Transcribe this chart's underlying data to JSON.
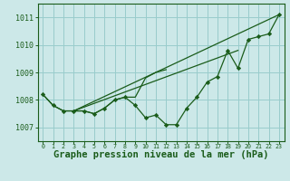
{
  "background_color": "#cce8e8",
  "grid_color": "#99cccc",
  "line_color": "#1a5c1a",
  "marker_color": "#1a5c1a",
  "xlabel": "Graphe pression niveau de la mer (hPa)",
  "xlabel_fontsize": 7.5,
  "ylim": [
    1006.5,
    1011.5
  ],
  "yticks": [
    1007,
    1008,
    1009,
    1010,
    1011
  ],
  "xlim": [
    -0.5,
    23.5
  ],
  "xticks": [
    0,
    1,
    2,
    3,
    4,
    5,
    6,
    7,
    8,
    9,
    10,
    11,
    12,
    13,
    14,
    15,
    16,
    17,
    18,
    19,
    20,
    21,
    22,
    23
  ],
  "series1": [
    1008.2,
    1007.8,
    1007.6,
    1007.6,
    1007.6,
    1007.5,
    1007.7,
    1008.0,
    1008.1,
    1007.8,
    1007.35,
    1007.45,
    1007.1,
    1007.1,
    1007.7,
    1008.1,
    1008.65,
    1008.85,
    1009.8,
    1009.15,
    1010.2,
    1010.3,
    1010.4,
    1011.1
  ],
  "series2": [
    1008.2,
    1007.8,
    1007.6,
    1007.6,
    1007.6,
    1007.5,
    1007.7,
    1008.0,
    1008.1,
    1008.1,
    1008.8,
    1009.0,
    1009.1
  ],
  "series3_x": [
    3,
    23
  ],
  "series3_y": [
    1007.6,
    1011.1
  ],
  "series4_x": [
    3,
    19
  ],
  "series4_y": [
    1007.6,
    1009.8
  ]
}
